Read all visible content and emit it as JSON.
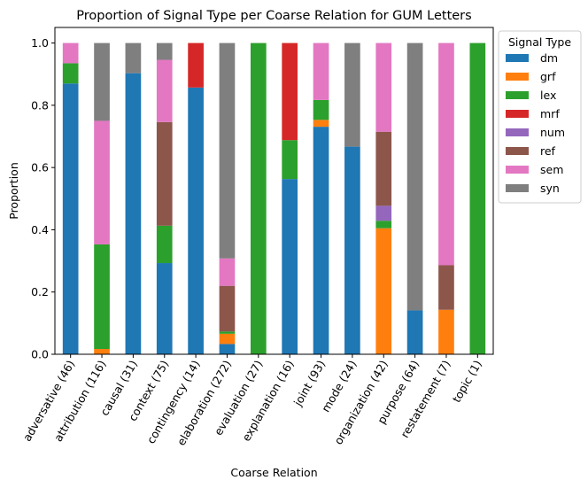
{
  "chart_data": {
    "type": "bar",
    "stacked": true,
    "title": "Proportion of Signal Type per Coarse Relation for GUM Letters",
    "xlabel": "Coarse Relation",
    "ylabel": "Proportion",
    "ylim": [
      0,
      1.05
    ],
    "yticks": [
      "0.0",
      "0.2",
      "0.4",
      "0.6",
      "0.8",
      "1.0"
    ],
    "legend_title": "Signal Type",
    "legend_position": "outside-right",
    "grid": false,
    "categories": [
      "adversative (46)",
      "attribution (116)",
      "causal (31)",
      "context (75)",
      "contingency (14)",
      "elaboration (272)",
      "evaluation (27)",
      "explanation (16)",
      "joint (93)",
      "mode (24)",
      "organization (42)",
      "purpose (64)",
      "restatement (7)",
      "topic (1)"
    ],
    "series": [
      {
        "name": "dm",
        "color": "#1f77b4",
        "values": [
          0.87,
          0.0,
          0.903,
          0.293,
          0.857,
          0.033,
          0.0,
          0.563,
          0.731,
          0.667,
          0.0,
          0.141,
          0.0,
          0.0
        ]
      },
      {
        "name": "grf",
        "color": "#ff7f0e",
        "values": [
          0.0,
          0.017,
          0.0,
          0.0,
          0.0,
          0.033,
          0.0,
          0.0,
          0.022,
          0.0,
          0.405,
          0.0,
          0.143,
          0.0
        ]
      },
      {
        "name": "lex",
        "color": "#2ca02c",
        "values": [
          0.065,
          0.336,
          0.0,
          0.12,
          0.0,
          0.007,
          1.0,
          0.125,
          0.064,
          0.0,
          0.024,
          0.0,
          0.0,
          1.0
        ]
      },
      {
        "name": "mrf",
        "color": "#d62728",
        "values": [
          0.0,
          0.0,
          0.0,
          0.0,
          0.143,
          0.0,
          0.0,
          0.312,
          0.0,
          0.0,
          0.0,
          0.0,
          0.0,
          0.0
        ]
      },
      {
        "name": "num",
        "color": "#9467bd",
        "values": [
          0.0,
          0.0,
          0.0,
          0.0,
          0.0,
          0.0,
          0.0,
          0.0,
          0.0,
          0.0,
          0.048,
          0.0,
          0.0,
          0.0
        ]
      },
      {
        "name": "ref",
        "color": "#8c564b",
        "values": [
          0.0,
          0.0,
          0.0,
          0.333,
          0.0,
          0.147,
          0.0,
          0.0,
          0.0,
          0.0,
          0.238,
          0.0,
          0.143,
          0.0
        ]
      },
      {
        "name": "sem",
        "color": "#e377c2",
        "values": [
          0.065,
          0.397,
          0.0,
          0.2,
          0.0,
          0.088,
          0.0,
          0.0,
          0.183,
          0.0,
          0.285,
          0.0,
          0.714,
          0.0
        ]
      },
      {
        "name": "syn",
        "color": "#7f7f7f",
        "values": [
          0.0,
          0.25,
          0.097,
          0.054,
          0.0,
          0.692,
          0.0,
          0.0,
          0.0,
          0.333,
          0.0,
          0.859,
          0.0,
          0.0
        ]
      }
    ]
  }
}
